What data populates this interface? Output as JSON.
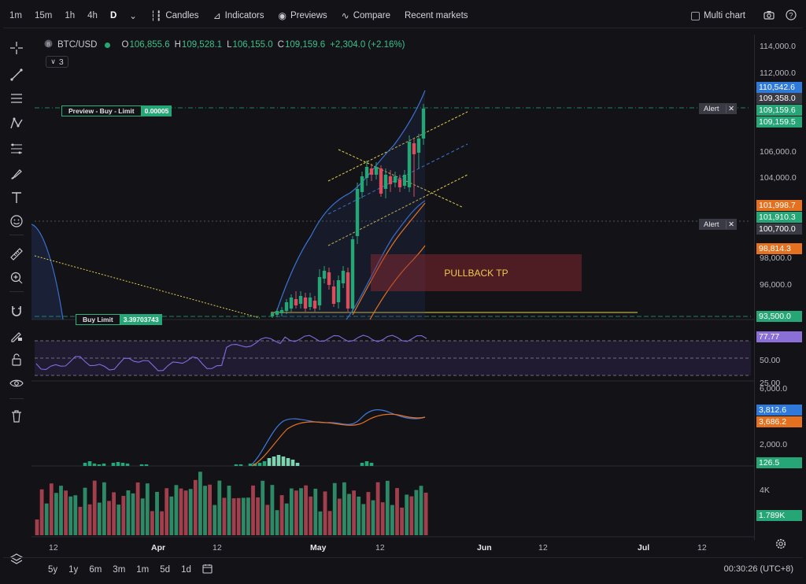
{
  "toolbar": {
    "timeframes": [
      "1m",
      "15m",
      "1h",
      "4h",
      "D"
    ],
    "active_timeframe": "D",
    "candles": "Candles",
    "indicators": "Indicators",
    "previews": "Previews",
    "compare": "Compare",
    "recent_markets": "Recent markets",
    "multi_chart": "Multi chart"
  },
  "legend": {
    "symbol": "BTC/USD",
    "o_label": "O",
    "o_value": "106,855.6",
    "h_label": "H",
    "h_value": "109,528.1",
    "l_label": "L",
    "l_value": "106,155.0",
    "c_label": "C",
    "c_value": "109,159.6",
    "change": "+2,304.0 (+2.16%)",
    "collapsed_count": "3"
  },
  "orders": {
    "preview_label": "Preview - Buy - Limit",
    "preview_value": "0.00005",
    "buy_label": "Buy Limit",
    "buy_value": "3.39703743"
  },
  "alerts": {
    "label": "Alert"
  },
  "annotation": "PULLBACK TP",
  "price_axis": {
    "labels": [
      "114,000.0",
      "112,000.0",
      "106,000.0",
      "104,000.0",
      "98,000.0",
      "96,000.0"
    ],
    "tags": [
      {
        "text": "110,542.6",
        "color": "#2f7ad8"
      },
      {
        "text": "109,358.0",
        "color": "#3a3a44"
      },
      {
        "text": "109,159.6",
        "color": "#26a677"
      },
      {
        "text": "109,159.5",
        "color": "#26a677"
      },
      {
        "text": "101,998.7",
        "color": "#e3711f"
      },
      {
        "text": "101,910.3",
        "color": "#26a677"
      },
      {
        "text": "100,700.0",
        "color": "#3a3a44"
      },
      {
        "text": "98,814.3",
        "color": "#e3711f"
      },
      {
        "text": "93,500.0",
        "color": "#26a677"
      }
    ]
  },
  "rsi_axis": {
    "labels": [
      "50.00",
      "25.00"
    ],
    "tag": "77.77",
    "tag_color": "#8a6fd6"
  },
  "macd_axis": {
    "labels": [
      "6,000.0",
      "2,000.0"
    ],
    "tags": [
      {
        "text": "3,812.6",
        "color": "#2f7ad8"
      },
      {
        "text": "3,686.2",
        "color": "#e3711f"
      },
      {
        "text": "126.5",
        "color": "#26a677"
      }
    ]
  },
  "volume_axis": {
    "labels": [
      "4K"
    ],
    "tag": "1.789K",
    "tag_color": "#26a677"
  },
  "time_axis": [
    {
      "text": "12",
      "bold": false
    },
    {
      "text": "Apr",
      "bold": true
    },
    {
      "text": "12",
      "bold": false
    },
    {
      "text": "May",
      "bold": true
    },
    {
      "text": "12",
      "bold": false
    },
    {
      "text": "Jun",
      "bold": true
    },
    {
      "text": "12",
      "bold": false
    },
    {
      "text": "Jul",
      "bold": true
    },
    {
      "text": "12",
      "bold": false
    }
  ],
  "ranges": [
    "5y",
    "1y",
    "6m",
    "3m",
    "1m",
    "5d",
    "1d"
  ],
  "clock": "00:30:26 (UTC+8)",
  "icons": {
    "left_tools": [
      "crosshair-icon",
      "trend-line-icon",
      "horizontal-lines-icon",
      "pattern-icon",
      "fib-icon",
      "brush-icon",
      "text-icon",
      "emoji-icon",
      "ruler-icon",
      "zoom-icon",
      "magnet-icon",
      "lock-draw-icon",
      "lock-icon",
      "eye-icon",
      "trash-icon",
      "layers-icon"
    ]
  },
  "colors": {
    "up": "#26a677",
    "down": "#d84e5d",
    "bollinger": "#3e7ae0",
    "channel": "#e4cf4f",
    "ma": "#e3711f",
    "rsi": "#7c6fe0"
  }
}
